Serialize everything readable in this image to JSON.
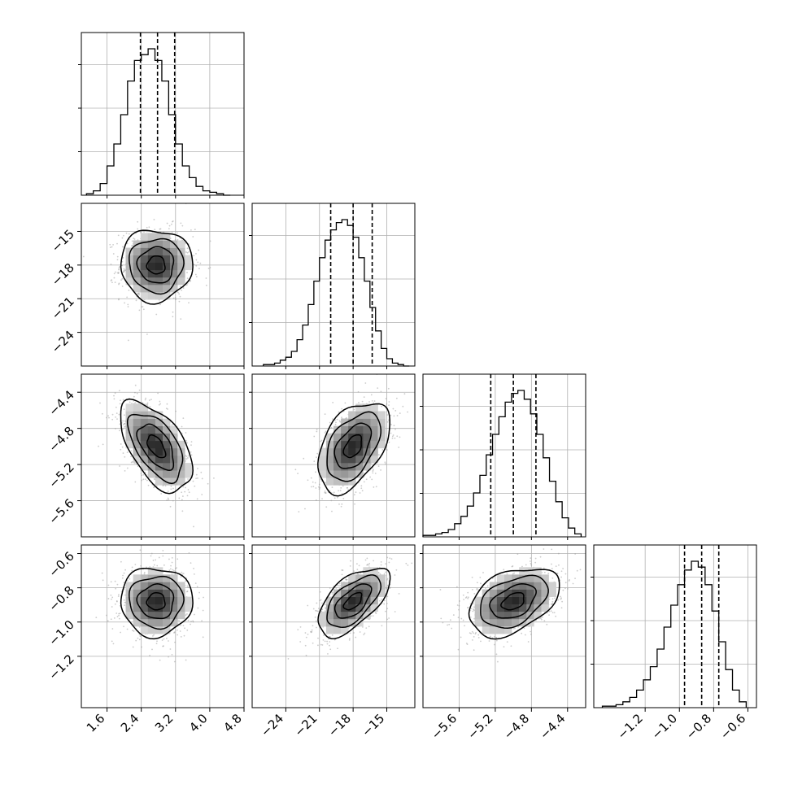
{
  "chart_data": {
    "type": "corner",
    "title": "",
    "parameters": [
      {
        "label": "",
        "range": [
          1.0,
          4.8
        ],
        "ticks": [
          "1.6",
          "2.4",
          "3.2",
          "4.0",
          "4.8"
        ],
        "tick_values": [
          1.6,
          2.4,
          3.2,
          4.0,
          4.8
        ],
        "quantiles": [
          2.38,
          2.78,
          3.18
        ]
      },
      {
        "label": "",
        "range": [
          -27.0,
          -12.5
        ],
        "ticks": [
          "−24",
          "−21",
          "−18",
          "−15"
        ],
        "tick_values": [
          -24,
          -21,
          -18,
          -15
        ],
        "quantiles": [
          -20.0,
          -18.0,
          -16.3
        ]
      },
      {
        "label": "",
        "range": [
          -6.0,
          -4.2
        ],
        "ticks": [
          "−5.6",
          "−5.2",
          "−4.8",
          "−4.4"
        ],
        "tick_values": [
          -5.6,
          -5.2,
          -4.8,
          -4.4
        ],
        "quantiles": [
          -5.25,
          -5.0,
          -4.75
        ]
      },
      {
        "label": "",
        "range": [
          -1.5,
          -0.55
        ],
        "ticks": [
          "−1.2",
          "−1.0",
          "−0.8",
          "−0.6"
        ],
        "tick_values": [
          -1.2,
          -1.0,
          -0.8,
          -0.6
        ],
        "quantiles": [
          -0.97,
          -0.87,
          -0.77
        ]
      }
    ],
    "histograms": [
      {
        "param": 0,
        "bin_edges": [
          1.12,
          1.28,
          1.44,
          1.6,
          1.76,
          1.92,
          2.08,
          2.24,
          2.4,
          2.56,
          2.72,
          2.88,
          3.04,
          3.2,
          3.36,
          3.52,
          3.68,
          3.84,
          4.0,
          4.16,
          4.32,
          4.48
        ],
        "counts": [
          1,
          3,
          8,
          20,
          35,
          55,
          78,
          92,
          96,
          100,
          92,
          78,
          55,
          35,
          20,
          12,
          6,
          3,
          2,
          1,
          0
        ]
      },
      {
        "param": 1,
        "bin_edges": [
          -26.0,
          -25.5,
          -25.0,
          -24.5,
          -24.0,
          -23.5,
          -23.0,
          -22.5,
          -22.0,
          -21.5,
          -21.0,
          -20.5,
          -20.0,
          -19.5,
          -19.0,
          -18.5,
          -18.0,
          -17.5,
          -17.0,
          -16.5,
          -16.0,
          -15.5,
          -15.0,
          -14.5,
          -14.0,
          -13.5,
          -13.0
        ],
        "counts": [
          1,
          1,
          2,
          4,
          6,
          10,
          18,
          28,
          42,
          58,
          74,
          86,
          93,
          98,
          100,
          96,
          88,
          74,
          58,
          40,
          24,
          12,
          5,
          2,
          1,
          0
        ]
      },
      {
        "param": 2,
        "bin_edges": [
          -6.0,
          -5.93,
          -5.86,
          -5.79,
          -5.72,
          -5.65,
          -5.58,
          -5.51,
          -5.44,
          -5.37,
          -5.3,
          -5.23,
          -5.16,
          -5.09,
          -5.02,
          -4.95,
          -4.88,
          -4.81,
          -4.74,
          -4.67,
          -4.6,
          -4.53,
          -4.46,
          -4.39,
          -4.32,
          -4.25
        ],
        "counts": [
          1,
          1,
          2,
          3,
          5,
          9,
          14,
          21,
          30,
          42,
          56,
          70,
          82,
          92,
          98,
          100,
          94,
          84,
          70,
          54,
          38,
          24,
          13,
          6,
          2
        ]
      },
      {
        "param": 3,
        "bin_edges": [
          -1.45,
          -1.41,
          -1.37,
          -1.33,
          -1.29,
          -1.25,
          -1.21,
          -1.17,
          -1.13,
          -1.09,
          -1.05,
          -1.01,
          -0.97,
          -0.93,
          -0.89,
          -0.85,
          -0.81,
          -0.77,
          -0.73,
          -0.69,
          -0.65,
          -0.61
        ],
        "counts": [
          1,
          1,
          2,
          4,
          7,
          12,
          19,
          28,
          40,
          55,
          70,
          84,
          94,
          100,
          96,
          84,
          66,
          45,
          26,
          12,
          4
        ]
      }
    ],
    "pairs": [
      {
        "x_param": 0,
        "y_param": 1,
        "mean": [
          2.75,
          -18.0
        ],
        "std": [
          0.42,
          1.6
        ],
        "correlation": 0.0
      },
      {
        "x_param": 0,
        "y_param": 2,
        "mean": [
          2.75,
          -5.0
        ],
        "std": [
          0.42,
          0.25
        ],
        "correlation": -0.55
      },
      {
        "x_param": 1,
        "y_param": 2,
        "mean": [
          -18.0,
          -5.0
        ],
        "std": [
          1.6,
          0.25
        ],
        "correlation": 0.45
      },
      {
        "x_param": 0,
        "y_param": 3,
        "mean": [
          2.75,
          -0.88
        ],
        "std": [
          0.42,
          0.1
        ],
        "correlation": 0.0
      },
      {
        "x_param": 1,
        "y_param": 3,
        "mean": [
          -18.0,
          -0.88
        ],
        "std": [
          1.6,
          0.1
        ],
        "correlation": 0.6
      },
      {
        "x_param": 2,
        "y_param": 3,
        "mean": [
          -5.0,
          -0.88
        ],
        "std": [
          0.25,
          0.1
        ],
        "correlation": 0.4
      }
    ],
    "contour_levels_sigma": [
      0.5,
      1.0,
      1.5,
      2.0
    ],
    "grid": true,
    "colors": {
      "line": "#000000",
      "grid": "#b0b0b0",
      "density": "#000000",
      "points": "#999999"
    }
  }
}
